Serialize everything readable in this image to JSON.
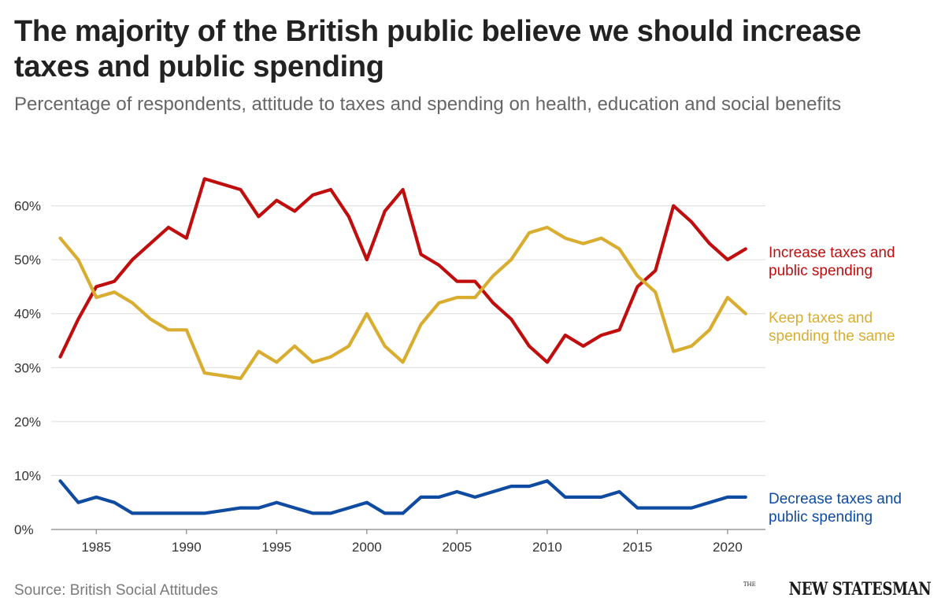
{
  "title": "The majority of the British public believe we should increase taxes and public spending",
  "subtitle": "Percentage of respondents, attitude to taxes and spending on health, education and social benefits",
  "source": "Source: British Social Attitudes",
  "logo": {
    "small": "THE",
    "name": "NEW STATESMAN"
  },
  "chart_data": {
    "type": "line",
    "x": [
      1983,
      1984,
      1985,
      1986,
      1987,
      1988,
      1989,
      1990,
      1991,
      1993,
      1994,
      1995,
      1996,
      1997,
      1998,
      1999,
      2000,
      2001,
      2002,
      2003,
      2004,
      2005,
      2006,
      2007,
      2008,
      2009,
      2010,
      2011,
      2012,
      2013,
      2014,
      2015,
      2016,
      2017,
      2018,
      2019,
      2020,
      2021
    ],
    "x_ticks": [
      1985,
      1990,
      1995,
      2000,
      2005,
      2010,
      2015,
      2020
    ],
    "y_ticks": [
      0,
      10,
      20,
      30,
      40,
      50,
      60
    ],
    "y_tick_labels": [
      "0%",
      "10%",
      "20%",
      "30%",
      "40%",
      "50%",
      "60%"
    ],
    "xlim": [
      1982.5,
      2022.1
    ],
    "ylim": [
      0,
      70
    ],
    "grid": true,
    "series": [
      {
        "name": "Increase taxes and public spending",
        "label_lines": [
          "Increase taxes and",
          "public spending"
        ],
        "color": "#c00d0d",
        "values": [
          32,
          39,
          45,
          46,
          50,
          53,
          56,
          54,
          65,
          63,
          58,
          61,
          59,
          62,
          63,
          58,
          50,
          59,
          63,
          51,
          49,
          46,
          46,
          42,
          39,
          34,
          31,
          36,
          34,
          36,
          37,
          45,
          48,
          60,
          57,
          53,
          50,
          52
        ]
      },
      {
        "name": "Keep taxes and spending the same",
        "label_lines": [
          "Keep taxes and",
          "spending the same"
        ],
        "color": "#d9ad30",
        "values": [
          54,
          50,
          43,
          44,
          42,
          39,
          37,
          37,
          29,
          28,
          33,
          31,
          34,
          31,
          32,
          34,
          40,
          34,
          31,
          38,
          42,
          43,
          43,
          47,
          50,
          55,
          56,
          54,
          53,
          54,
          52,
          47,
          44,
          33,
          34,
          37,
          43,
          40
        ]
      },
      {
        "name": "Decrease taxes and public spending",
        "label_lines": [
          "Decrease taxes and",
          "public spending"
        ],
        "color": "#0f4ba1",
        "values": [
          9,
          5,
          6,
          5,
          3,
          3,
          3,
          3,
          3,
          4,
          4,
          5,
          4,
          3,
          3,
          4,
          5,
          3,
          3,
          6,
          6,
          7,
          6,
          7,
          8,
          8,
          9,
          6,
          6,
          6,
          7,
          4,
          4,
          4,
          4,
          5,
          6,
          6
        ]
      }
    ]
  }
}
